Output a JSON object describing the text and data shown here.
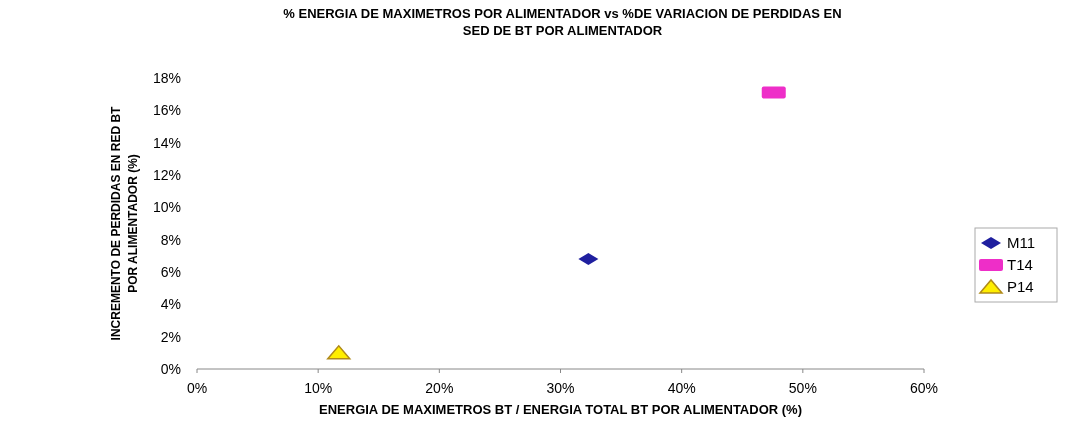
{
  "chart_data": {
    "type": "scatter",
    "title": "% ENERGIA DE MAXIMETROS POR ALIMENTADOR vs %DE VARIACION DE PERDIDAS EN SED DE BT POR ALIMENTADOR",
    "xlabel": "ENERGIA DE MAXIMETROS BT / ENERGIA TOTAL BT POR ALIMENTADOR (%)",
    "ylabel": "INCREMENTO DE PERDIDAS EN RED BT POR ALIMENTADOR (%)",
    "xlim": [
      0,
      60
    ],
    "ylim": [
      0,
      18
    ],
    "xticks": [
      {
        "value": 0,
        "label": "0%"
      },
      {
        "value": 10,
        "label": "10%"
      },
      {
        "value": 20,
        "label": "20%"
      },
      {
        "value": 30,
        "label": "30%"
      },
      {
        "value": 40,
        "label": "40%"
      },
      {
        "value": 50,
        "label": "50%"
      },
      {
        "value": 60,
        "label": "60%"
      }
    ],
    "yticks": [
      {
        "value": 0,
        "label": "0%"
      },
      {
        "value": 2,
        "label": "2%"
      },
      {
        "value": 4,
        "label": "4%"
      },
      {
        "value": 6,
        "label": "6%"
      },
      {
        "value": 8,
        "label": "8%"
      },
      {
        "value": 10,
        "label": "10%"
      },
      {
        "value": 12,
        "label": "12%"
      },
      {
        "value": 14,
        "label": "14%"
      },
      {
        "value": 16,
        "label": "16%"
      },
      {
        "value": 18,
        "label": "18%"
      }
    ],
    "legend": "right",
    "grid": false,
    "series": [
      {
        "name": "M11",
        "color": "#1f1f9f",
        "marker": "diamond",
        "x": [
          32.3
        ],
        "values": [
          6.8
        ]
      },
      {
        "name": "T14",
        "color": "#ee2ec8",
        "marker": "square",
        "x": [
          47.6
        ],
        "values": [
          17.1
        ]
      },
      {
        "name": "P14",
        "color": "#ffee00",
        "marker": "triangle",
        "x": [
          11.7
        ],
        "values": [
          1.0
        ]
      }
    ]
  }
}
